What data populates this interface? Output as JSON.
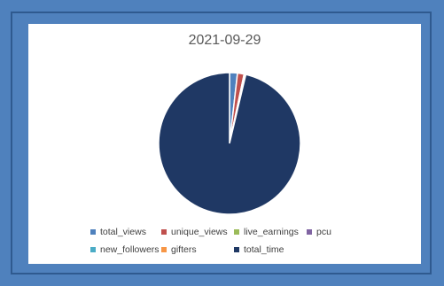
{
  "chart_data": {
    "type": "pie",
    "title": "2021-09-29",
    "categories": [
      "total_views",
      "unique_views",
      "live_earnings",
      "pcu",
      "new_followers",
      "gifters",
      "total_time"
    ],
    "values": [
      1.8,
      1.5,
      0.1,
      0.1,
      0.1,
      0.1,
      96.3
    ],
    "colors": [
      "#4f81bd",
      "#c0504d",
      "#9bbb59",
      "#8064a2",
      "#4bacc6",
      "#f79646",
      "#1f3864"
    ],
    "legend_position": "bottom"
  }
}
